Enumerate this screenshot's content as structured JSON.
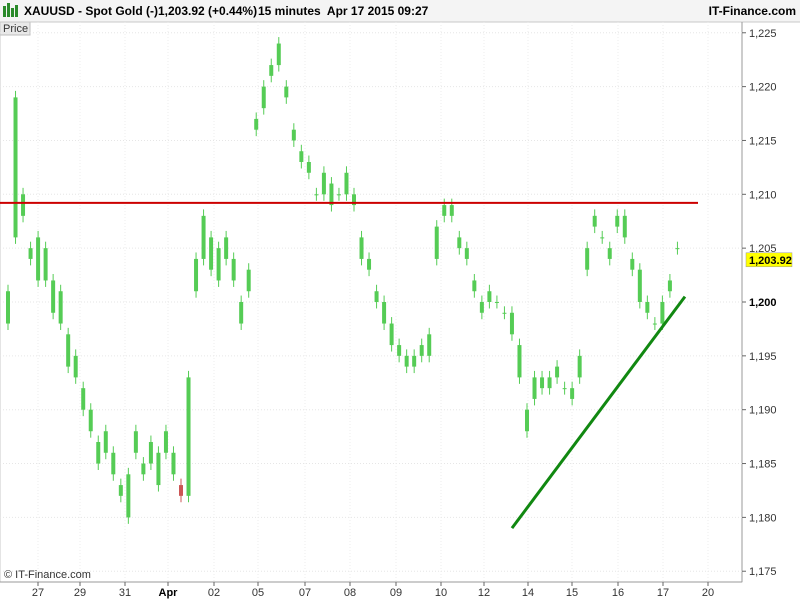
{
  "header": {
    "instrument": "XAUUSD - Spot Gold (-)",
    "last_change": "1,203.92 (+0.44%)",
    "interval_date": "15 minutes  Apr 17 2015 09:27",
    "brand": "IT-Finance.com"
  },
  "panel_label": "Price",
  "copyright": "© IT-Finance.com",
  "price_badge": "1,203.92",
  "colors": {
    "up": "#55cc55",
    "down": "#cc5555",
    "resistance": "#cc0000",
    "trendline": "#118811",
    "badge_bg": "#ffff00",
    "header_bg": "#f4f4f4"
  },
  "chart_data": {
    "type": "candlestick",
    "interval": "15 minutes",
    "ylim": [
      1174,
      1226
    ],
    "y_ticks": [
      "1,225",
      "1,220",
      "1,215",
      "1,210",
      "1,205",
      "1,200",
      "1,195",
      "1,190",
      "1,185",
      "1,180",
      "1,175"
    ],
    "y_tick_values": [
      1225,
      1220,
      1215,
      1210,
      1205,
      1200,
      1195,
      1190,
      1185,
      1180,
      1175
    ],
    "bold_y_tick": "1,200",
    "x_ticks": [
      "27",
      "29",
      "31",
      "Apr",
      "02",
      "05",
      "07",
      "08",
      "09",
      "10",
      "12",
      "14",
      "15",
      "16",
      "17",
      "20"
    ],
    "bold_x_tick": "Apr",
    "last_price": 1203.92,
    "series": [
      {
        "values": [
          [
            1,
            1198,
            1201
          ],
          [
            2,
            1206,
            1219
          ],
          [
            3,
            1208,
            1210
          ],
          [
            4,
            1204,
            1205
          ],
          [
            5,
            1202,
            1206
          ],
          [
            6,
            1202,
            1205
          ],
          [
            7,
            1199,
            1202
          ],
          [
            8,
            1198,
            1201
          ],
          [
            9,
            1194,
            1197
          ],
          [
            10,
            1193,
            1195
          ],
          [
            11,
            1190,
            1192
          ],
          [
            12,
            1188,
            1190
          ],
          [
            13,
            1185,
            1187
          ],
          [
            14,
            1186,
            1188
          ],
          [
            15,
            1184,
            1186
          ],
          [
            16,
            1182,
            1183
          ],
          [
            17,
            1180,
            1184
          ],
          [
            18,
            1186,
            1188
          ],
          [
            19,
            1184,
            1185
          ],
          [
            20,
            1185,
            1187
          ],
          [
            21,
            1183,
            1186
          ],
          [
            22,
            1186,
            1188
          ],
          [
            23,
            1184,
            1186
          ],
          [
            24,
            1183,
            1182
          ],
          [
            25,
            1182,
            1193
          ],
          [
            26,
            1201,
            1204
          ],
          [
            27,
            1204,
            1208
          ],
          [
            28,
            1203,
            1206
          ],
          [
            29,
            1202,
            1205
          ],
          [
            30,
            1204,
            1206
          ],
          [
            31,
            1202,
            1204
          ],
          [
            32,
            1198,
            1200
          ],
          [
            33,
            1201,
            1203
          ],
          [
            34,
            1216,
            1217
          ],
          [
            35,
            1218,
            1220
          ],
          [
            36,
            1221,
            1222
          ],
          [
            37,
            1222,
            1224
          ],
          [
            38,
            1219,
            1220
          ],
          [
            39,
            1215,
            1216
          ],
          [
            40,
            1213,
            1214
          ],
          [
            41,
            1212,
            1213
          ],
          [
            42,
            1210,
            1210
          ],
          [
            43,
            1210,
            1212
          ],
          [
            44,
            1209,
            1211
          ],
          [
            45,
            1210,
            1210
          ],
          [
            46,
            1210,
            1212
          ],
          [
            47,
            1209,
            1210
          ],
          [
            48,
            1204,
            1206
          ],
          [
            49,
            1203,
            1204
          ],
          [
            50,
            1200,
            1201
          ],
          [
            51,
            1198,
            1200
          ],
          [
            52,
            1196,
            1198
          ],
          [
            53,
            1195,
            1196
          ],
          [
            54,
            1194,
            1195
          ],
          [
            55,
            1194,
            1195
          ],
          [
            56,
            1195,
            1196
          ],
          [
            57,
            1195,
            1197
          ],
          [
            58,
            1204,
            1207
          ],
          [
            59,
            1208,
            1209
          ],
          [
            60,
            1208,
            1209
          ],
          [
            61,
            1205,
            1206
          ],
          [
            62,
            1204,
            1205
          ],
          [
            63,
            1201,
            1202
          ],
          [
            64,
            1199,
            1200
          ],
          [
            65,
            1200,
            1201
          ],
          [
            66,
            1200,
            1200
          ],
          [
            67,
            1199,
            1199
          ],
          [
            68,
            1197,
            1199
          ],
          [
            69,
            1193,
            1196
          ],
          [
            70,
            1188,
            1190
          ],
          [
            71,
            1191,
            1193
          ],
          [
            72,
            1192,
            1193
          ],
          [
            73,
            1192,
            1193
          ],
          [
            74,
            1193,
            1194
          ],
          [
            75,
            1192,
            1192
          ],
          [
            76,
            1191,
            1192
          ],
          [
            77,
            1193,
            1195
          ],
          [
            78,
            1203,
            1205
          ],
          [
            79,
            1207,
            1208
          ],
          [
            80,
            1206,
            1206
          ],
          [
            81,
            1204,
            1205
          ],
          [
            82,
            1207,
            1208
          ],
          [
            83,
            1206,
            1208
          ],
          [
            84,
            1203,
            1204
          ],
          [
            85,
            1200,
            1203
          ],
          [
            86,
            1199,
            1200
          ],
          [
            87,
            1198,
            1198
          ],
          [
            88,
            1198,
            1200
          ],
          [
            89,
            1201,
            1202
          ],
          [
            90,
            1205,
            1205
          ]
        ]
      }
    ],
    "annotations": [
      {
        "type": "horizontal_line",
        "y": 1209.2,
        "color": "#cc0000"
      },
      {
        "type": "trendline",
        "x1": 68,
        "y1": 1179,
        "x2": 91,
        "y2": 1200.5,
        "color": "#118811"
      }
    ]
  }
}
